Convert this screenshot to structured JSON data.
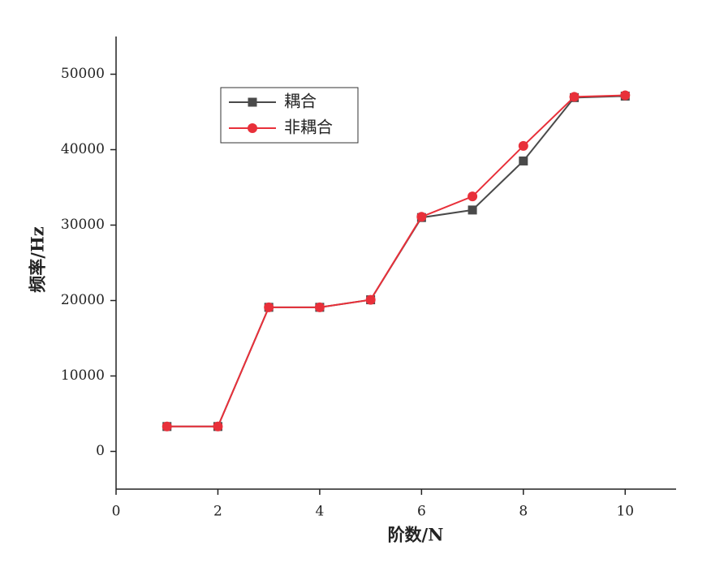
{
  "chart_data": {
    "type": "line",
    "x_label": "阶数/N",
    "y_label": "频率/Hz",
    "x": [
      1,
      2,
      3,
      4,
      5,
      6,
      7,
      8,
      9,
      10
    ],
    "series": [
      {
        "name": "耦合",
        "color": "#4a4a4a",
        "marker": "square",
        "values": [
          3300,
          3300,
          19100,
          19100,
          20100,
          31000,
          32000,
          38500,
          46900,
          47100
        ]
      },
      {
        "name": "非耦合",
        "color": "#e8303a",
        "marker": "circle",
        "values": [
          3300,
          3300,
          19100,
          19100,
          20100,
          31100,
          33800,
          40500,
          47000,
          47200
        ]
      }
    ],
    "xlim": [
      0,
      11
    ],
    "xticks": [
      0,
      2,
      4,
      6,
      8,
      10
    ],
    "ylim": [
      -5000,
      55000
    ],
    "yticks": [
      0,
      10000,
      20000,
      30000,
      40000,
      50000
    ],
    "legend": "upper-left"
  }
}
